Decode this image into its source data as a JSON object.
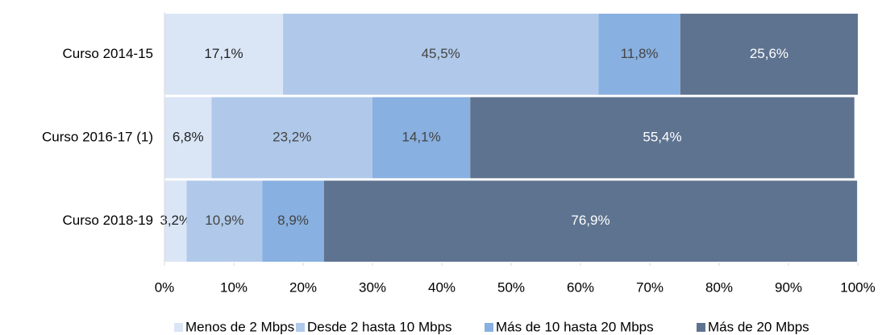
{
  "chart_data": {
    "type": "stacked-barh",
    "categories": [
      "Curso 2014-15",
      "Curso 2016-17 (1)",
      "Curso 2018-19"
    ],
    "series": [
      {
        "name": "Menos de 2 Mbps",
        "color": "#dae6f6",
        "values": [
          17.1,
          6.8,
          3.2
        ],
        "value_labels": [
          "17,1%",
          "6,8%",
          "3,2%"
        ]
      },
      {
        "name": "Desde 2 hasta 10 Mbps",
        "color": "#b0c9ea",
        "values": [
          45.5,
          23.2,
          10.9
        ],
        "value_labels": [
          "45,5%",
          "23,2%",
          "10,9%"
        ]
      },
      {
        "name": "Más de 10 hasta 20 Mbps",
        "color": "#88b0e0",
        "values": [
          11.8,
          14.1,
          8.9
        ],
        "value_labels": [
          "11,8%",
          "14,1%",
          "8,9%"
        ]
      },
      {
        "name": "Más de 20 Mbps",
        "color": "#5e7390",
        "values": [
          25.6,
          55.4,
          76.9
        ],
        "value_labels": [
          "25,6%",
          "55,4%",
          "76,9%"
        ]
      }
    ],
    "xlim": [
      0,
      100
    ],
    "xticks": [
      {
        "value": 0,
        "label": "0%"
      },
      {
        "value": 10,
        "label": "10%"
      },
      {
        "value": 20,
        "label": "20%"
      },
      {
        "value": 30,
        "label": "30%"
      },
      {
        "value": 40,
        "label": "40%"
      },
      {
        "value": 50,
        "label": "50%"
      },
      {
        "value": 60,
        "label": "60%"
      },
      {
        "value": 70,
        "label": "70%"
      },
      {
        "value": 80,
        "label": "80%"
      },
      {
        "value": 90,
        "label": "90%"
      },
      {
        "value": 100,
        "label": "100%"
      }
    ],
    "legend": "bottom"
  }
}
